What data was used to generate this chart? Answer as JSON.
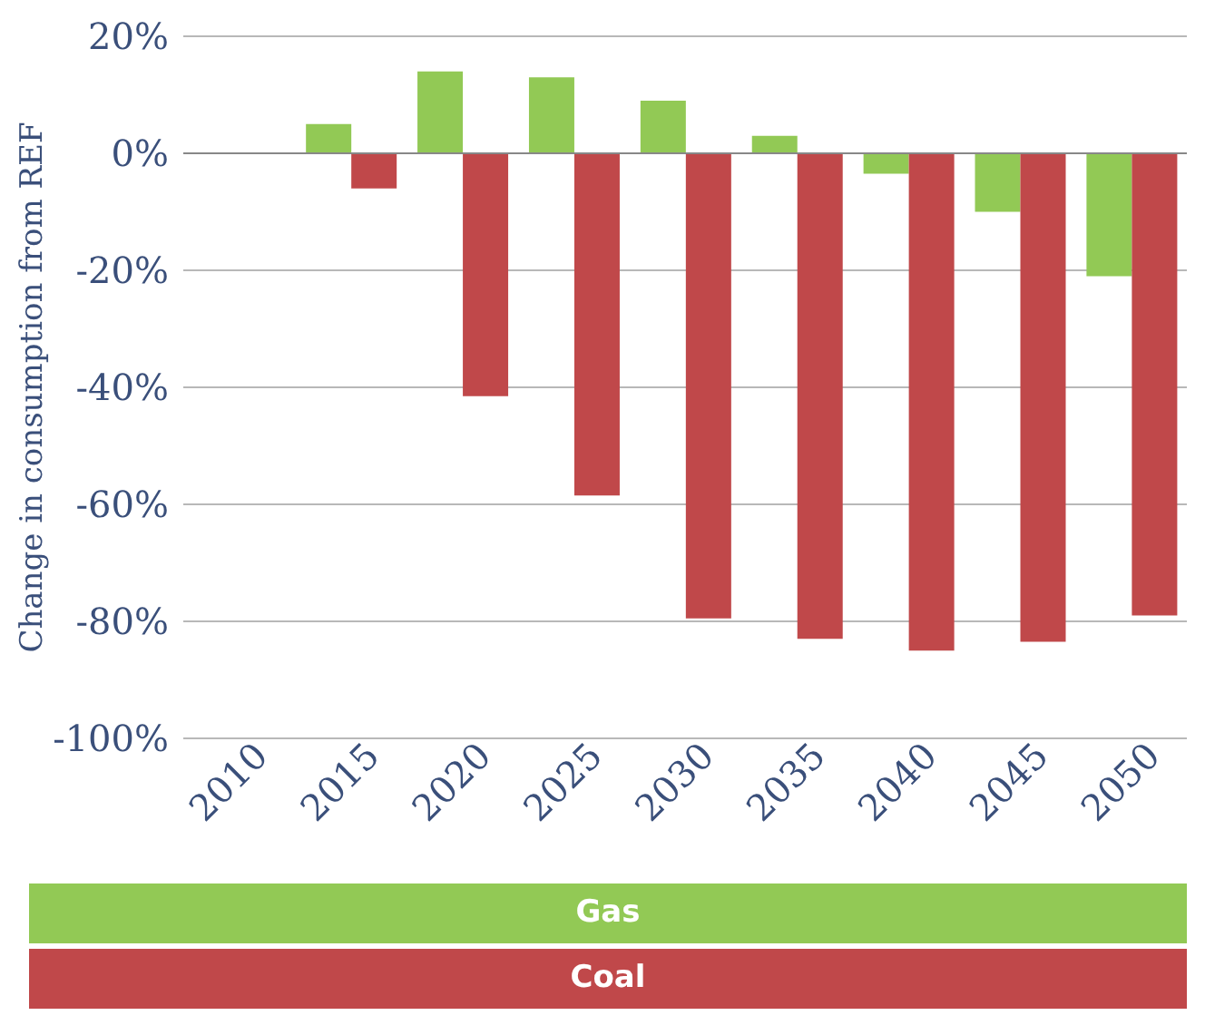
{
  "chart_data": {
    "type": "bar",
    "ylabel": "Change in consumption from REF",
    "categories": [
      "2010",
      "2015",
      "2020",
      "2025",
      "2030",
      "2035",
      "2040",
      "2045",
      "2050"
    ],
    "series": [
      {
        "name": "Gas",
        "color": "#92c955",
        "values": [
          0,
          5,
          14,
          13,
          9,
          3,
          -3.5,
          -10,
          -21
        ]
      },
      {
        "name": "Coal",
        "color": "#c0484a",
        "values": [
          0,
          -6,
          -41.5,
          -58.5,
          -79.5,
          -83,
          -85,
          -83.5,
          -79
        ]
      }
    ],
    "ylim": [
      -100,
      20
    ],
    "yticks": [
      {
        "value": -100,
        "label": "-100%"
      },
      {
        "value": -80,
        "label": "-80%"
      },
      {
        "value": -60,
        "label": "-60%"
      },
      {
        "value": -40,
        "label": "-40%"
      },
      {
        "value": -20,
        "label": "-20%"
      },
      {
        "value": 0,
        "label": "0%"
      },
      {
        "value": 20,
        "label": "20%"
      }
    ],
    "grid": "y",
    "legend": "bottom"
  }
}
